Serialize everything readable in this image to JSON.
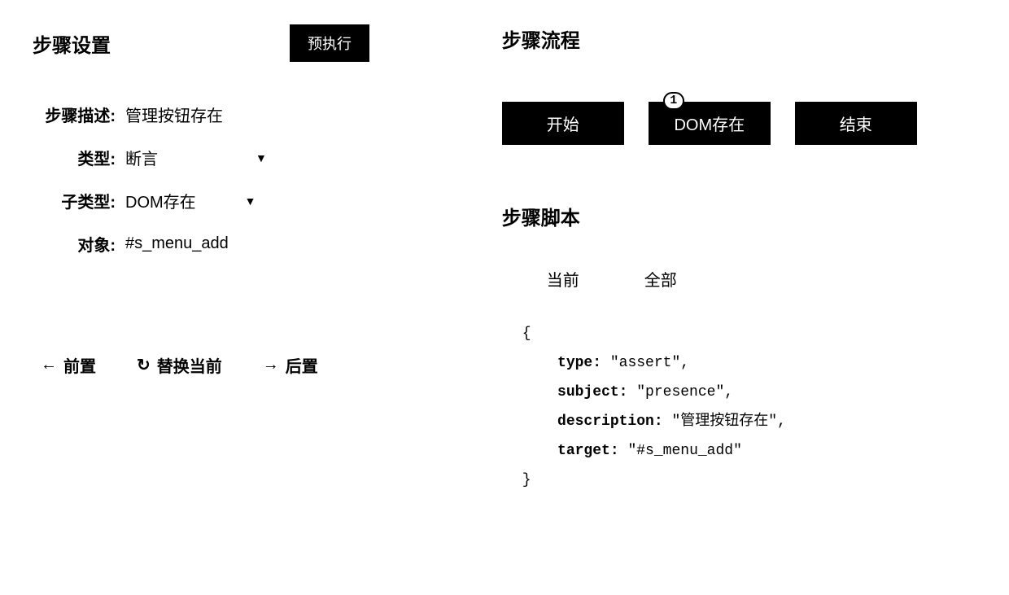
{
  "colors": {
    "background": "#ffffff",
    "text": "#000000",
    "button_bg": "#000000",
    "button_text": "#ffffff",
    "flow_node_bg": "#000000",
    "flow_node_text": "#ffffff",
    "badge_bg": "#ffffff",
    "badge_border": "#000000"
  },
  "left": {
    "title": "步骤设置",
    "pre_exec": "预执行",
    "rows": {
      "desc_label": "步骤描述:",
      "desc_value": "管理按钮存在",
      "type_label": "类型:",
      "type_value": "断言",
      "subtype_label": "子类型:",
      "subtype_value": "DOM存在",
      "target_label": "对象:",
      "target_value": "#s_menu_add"
    },
    "actions": {
      "pre": "前置",
      "replace": "替换当前",
      "post": "后置"
    }
  },
  "right": {
    "flow_title": "步骤流程",
    "flow": {
      "start": "开始",
      "mid": "DOM存在",
      "mid_badge": "1",
      "end": "结束"
    },
    "script_title": "步骤脚本",
    "tabs": {
      "current": "当前",
      "all": "全部"
    },
    "code": {
      "type_key": "type:",
      "type_val": "\"assert\"",
      "subject_key": "subject:",
      "subject_val": "\"presence\"",
      "description_key": "description:",
      "description_val": "\"管理按钮存在\"",
      "target_key": "target:",
      "target_val": "\"#s_menu_add\""
    }
  }
}
